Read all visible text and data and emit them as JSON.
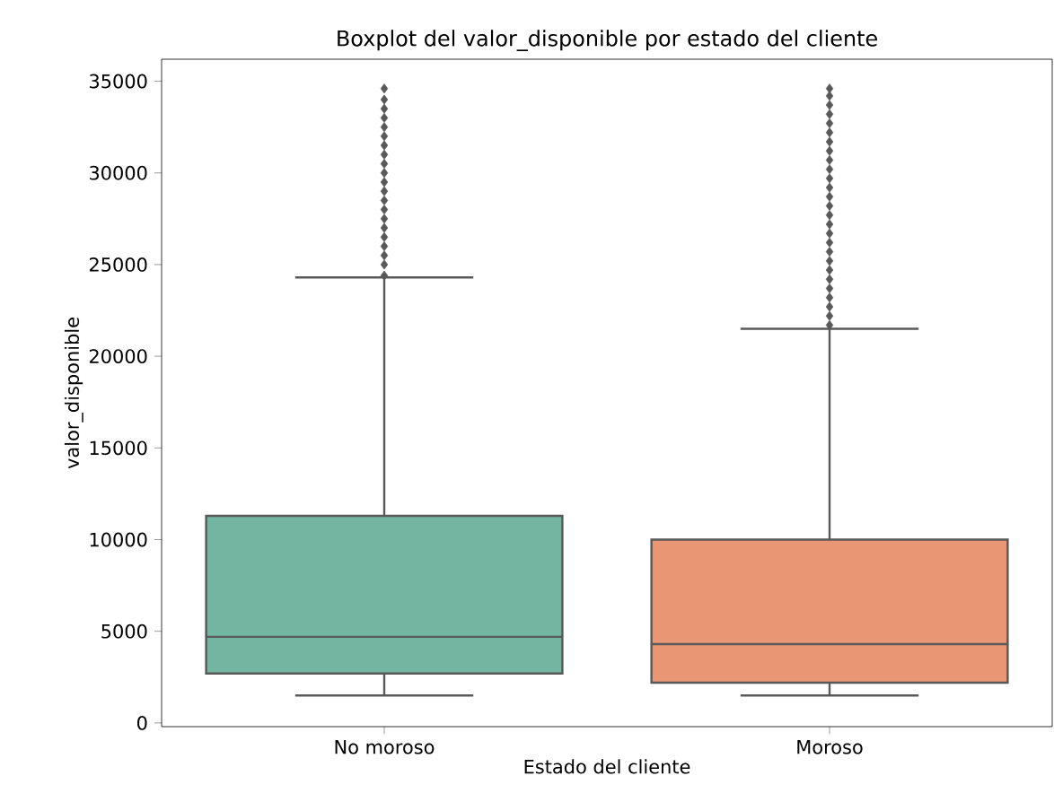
{
  "chart_data": {
    "type": "box",
    "title": "Boxplot del valor_disponible por estado del cliente",
    "xlabel": "Estado del cliente",
    "ylabel": "valor_disponible",
    "categories": [
      "No moroso",
      "Moroso"
    ],
    "colors": [
      "#72b6a1",
      "#e99675"
    ],
    "boxes": [
      {
        "low": 1500,
        "q1": 2700,
        "median": 4700,
        "q3": 11300,
        "high": 24300,
        "outliers": [
          24400,
          25000,
          25500,
          26000,
          26500,
          27000,
          27500,
          28000,
          28500,
          29000,
          29500,
          30000,
          30500,
          31000,
          31500,
          32000,
          32500,
          33000,
          33500,
          34000,
          34600
        ]
      },
      {
        "low": 1500,
        "q1": 2200,
        "median": 4300,
        "q3": 10000,
        "high": 21500,
        "outliers": [
          21700,
          22200,
          22700,
          23200,
          23700,
          24200,
          24700,
          25200,
          25700,
          26200,
          26700,
          27200,
          27700,
          28200,
          28700,
          29200,
          29700,
          30200,
          30700,
          31200,
          31700,
          32200,
          32700,
          33200,
          33700,
          34200,
          34600
        ]
      }
    ],
    "ylim": [
      -200,
      36200
    ],
    "yticks": [
      0,
      5000,
      10000,
      15000,
      20000,
      25000,
      30000,
      35000
    ],
    "marker": "diamond"
  }
}
